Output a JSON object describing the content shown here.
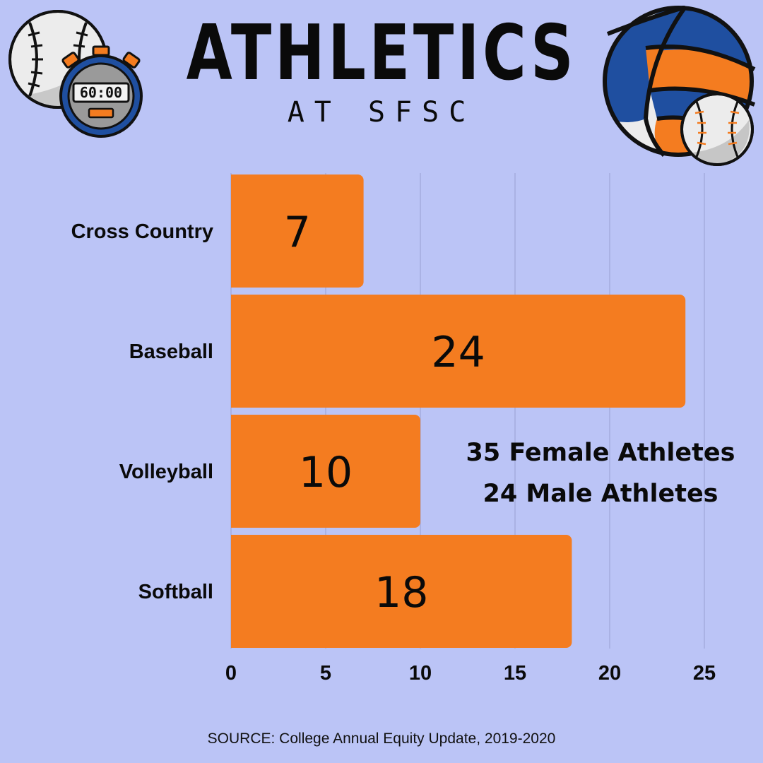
{
  "header": {
    "title": "ATHLETICS",
    "subtitle": "AT SFSC"
  },
  "icons": {
    "top_left": [
      "baseball-icon",
      "stopwatch-icon"
    ],
    "top_right": [
      "volleyball-icon",
      "baseball-icon"
    ],
    "stopwatch_display": "60:00"
  },
  "stats": {
    "female": "35 Female Athletes",
    "male": "24 Male Athletes"
  },
  "source": "SOURCE: College Annual Equity Update, 2019-2020",
  "colors": {
    "background": "#bbc4f6",
    "bar": "#f47c20",
    "gridline": "#a5acdd",
    "text": "#0a0a0a",
    "volleyball_blue": "#1f4fa0"
  },
  "chart_data": {
    "type": "bar",
    "orientation": "horizontal",
    "categories": [
      "Cross Country",
      "Baseball",
      "Volleyball",
      "Softball"
    ],
    "values": [
      7,
      24,
      10,
      18
    ],
    "xlim": [
      0,
      25
    ],
    "xticks": [
      0,
      5,
      10,
      15,
      20,
      25
    ],
    "grid": true,
    "data_labels": true
  }
}
